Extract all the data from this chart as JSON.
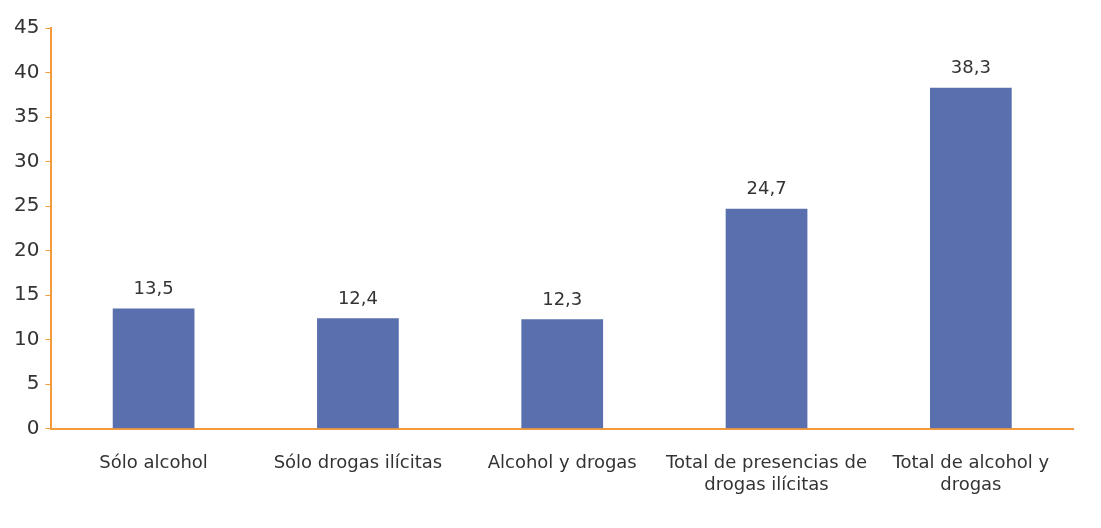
{
  "chart_data": {
    "type": "bar",
    "categories": [
      "Sólo alcohol",
      "Sólo drogas ilícitas",
      "Alcohol y drogas",
      "Total de presencias de drogas ilícitas",
      "Total de alcohol y drogas"
    ],
    "values": [
      13.5,
      12.4,
      12.3,
      24.7,
      38.3
    ],
    "value_labels": [
      "13,5",
      "12,4",
      "12,3",
      "24,7",
      "38,3"
    ],
    "color": "#5a6fad",
    "ylim": [
      0,
      45
    ],
    "yticks": [
      0,
      5,
      10,
      15,
      20,
      25,
      30,
      35,
      40,
      45
    ],
    "grid": false,
    "legend": false
  }
}
